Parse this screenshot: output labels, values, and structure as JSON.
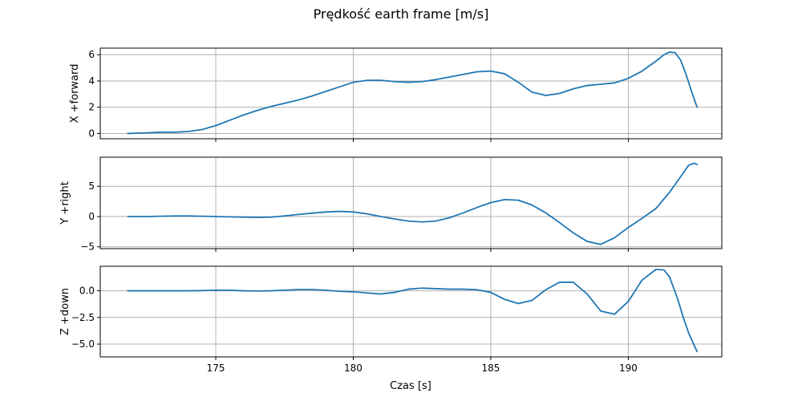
{
  "figure": {
    "title": "Prędkość earth frame [m/s]",
    "xlabel": "Czas [s]",
    "line_color": "#1f77b4"
  },
  "chart_data": [
    {
      "type": "line",
      "ylabel": "X +forward",
      "xlim": [
        170.8,
        193.4
      ],
      "ylim": [
        -0.4,
        6.5
      ],
      "xticks": [
        175,
        180,
        185,
        190
      ],
      "yticks": [
        0,
        2,
        4,
        6
      ],
      "ytick_labels": [
        "0",
        "2",
        "4",
        "6"
      ],
      "show_xtick_labels": false,
      "grid": true,
      "series": [
        {
          "x": [
            171.8,
            172.5,
            173.0,
            173.5,
            174.0,
            174.5,
            175.0,
            175.5,
            176.0,
            176.5,
            177.0,
            177.5,
            178.0,
            178.5,
            179.0,
            179.5,
            180.0,
            180.5,
            181.0,
            181.5,
            182.0,
            182.5,
            183.0,
            183.5,
            184.0,
            184.5,
            185.0,
            185.5,
            186.0,
            186.5,
            187.0,
            187.5,
            188.0,
            188.5,
            189.0,
            189.5,
            190.0,
            190.5,
            191.0,
            191.3,
            191.5,
            191.7,
            191.9,
            192.1,
            192.3,
            192.5
          ],
          "y": [
            0.0,
            0.05,
            0.1,
            0.1,
            0.15,
            0.3,
            0.6,
            1.0,
            1.4,
            1.75,
            2.05,
            2.3,
            2.55,
            2.85,
            3.2,
            3.55,
            3.9,
            4.05,
            4.05,
            3.95,
            3.9,
            3.95,
            4.1,
            4.3,
            4.5,
            4.7,
            4.75,
            4.55,
            3.9,
            3.15,
            2.9,
            3.05,
            3.4,
            3.65,
            3.75,
            3.85,
            4.2,
            4.75,
            5.5,
            6.0,
            6.2,
            6.15,
            5.6,
            4.5,
            3.2,
            2.0
          ]
        }
      ]
    },
    {
      "type": "line",
      "ylabel": "Y +right",
      "xlim": [
        170.8,
        193.4
      ],
      "ylim": [
        -5.3,
        9.8
      ],
      "xticks": [
        175,
        180,
        185,
        190
      ],
      "yticks": [
        -5,
        0,
        5
      ],
      "ytick_labels": [
        "−5",
        "0",
        "5"
      ],
      "show_xtick_labels": false,
      "grid": true,
      "series": [
        {
          "x": [
            171.8,
            172.5,
            173.0,
            173.5,
            174.0,
            174.5,
            175.0,
            175.5,
            176.0,
            176.5,
            177.0,
            177.5,
            178.0,
            178.5,
            179.0,
            179.5,
            180.0,
            180.5,
            181.0,
            181.5,
            182.0,
            182.5,
            183.0,
            183.5,
            184.0,
            184.5,
            185.0,
            185.5,
            186.0,
            186.5,
            187.0,
            187.5,
            188.0,
            188.5,
            189.0,
            189.5,
            190.0,
            190.5,
            191.0,
            191.5,
            192.0,
            192.2,
            192.4,
            192.5
          ],
          "y": [
            0.0,
            0.0,
            0.05,
            0.1,
            0.1,
            0.05,
            0.0,
            -0.05,
            -0.1,
            -0.15,
            -0.1,
            0.1,
            0.35,
            0.55,
            0.75,
            0.85,
            0.75,
            0.45,
            0.0,
            -0.4,
            -0.75,
            -0.9,
            -0.75,
            -0.2,
            0.6,
            1.5,
            2.3,
            2.8,
            2.7,
            1.9,
            0.6,
            -1.0,
            -2.7,
            -4.1,
            -4.6,
            -3.5,
            -1.8,
            -0.3,
            1.3,
            4.0,
            7.2,
            8.5,
            8.8,
            8.6
          ]
        }
      ]
    },
    {
      "type": "line",
      "ylabel": "Z +down",
      "xlim": [
        170.8,
        193.4
      ],
      "ylim": [
        -6.2,
        2.3
      ],
      "xticks": [
        175,
        180,
        185,
        190
      ],
      "yticks": [
        -5,
        -2.5,
        0
      ],
      "ytick_labels": [
        "−5.0",
        "−2.5",
        "0.0"
      ],
      "xtick_labels": [
        "175",
        "180",
        "185",
        "190"
      ],
      "show_xtick_labels": true,
      "grid": true,
      "series": [
        {
          "x": [
            171.8,
            172.5,
            173.0,
            173.5,
            174.0,
            174.5,
            175.0,
            175.5,
            176.0,
            176.5,
            177.0,
            177.5,
            178.0,
            178.5,
            179.0,
            179.5,
            180.0,
            180.5,
            181.0,
            181.5,
            182.0,
            182.5,
            183.0,
            183.5,
            184.0,
            184.5,
            185.0,
            185.5,
            186.0,
            186.5,
            187.0,
            187.5,
            188.0,
            188.5,
            189.0,
            189.5,
            190.0,
            190.5,
            191.0,
            191.3,
            191.5,
            191.8,
            192.0,
            192.2,
            192.5
          ],
          "y": [
            0.0,
            0.0,
            0.0,
            0.0,
            0.0,
            0.02,
            0.05,
            0.05,
            0.0,
            -0.02,
            0.0,
            0.05,
            0.12,
            0.12,
            0.05,
            -0.05,
            -0.1,
            -0.2,
            -0.3,
            -0.15,
            0.15,
            0.25,
            0.2,
            0.15,
            0.15,
            0.1,
            -0.15,
            -0.8,
            -1.2,
            -0.9,
            0.1,
            0.8,
            0.8,
            -0.3,
            -1.9,
            -2.2,
            -1.0,
            1.0,
            2.0,
            1.95,
            1.3,
            -0.8,
            -2.5,
            -4.0,
            -5.7
          ]
        }
      ]
    }
  ]
}
